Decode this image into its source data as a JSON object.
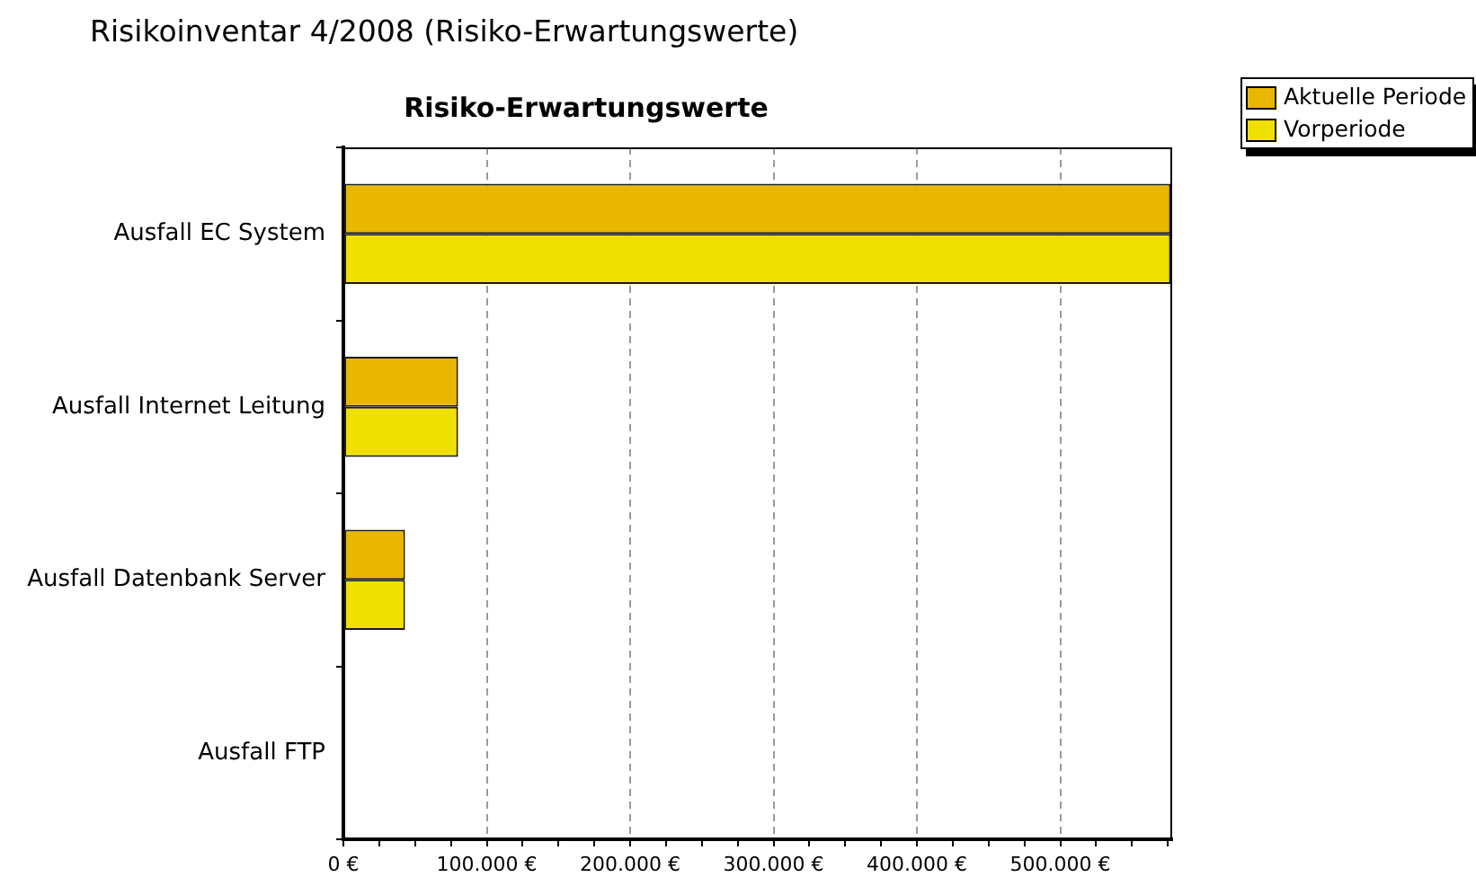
{
  "chart_data": {
    "type": "bar",
    "orientation": "horizontal",
    "title": "Risikoinventar 4/2008 (Risiko-Erwartungswerte)",
    "subtitle": "Risiko-Erwartungswerte",
    "categories": [
      "Ausfall EC System",
      "Ausfall Internet Leitung",
      "Ausfall Datenbank Server",
      "Ausfall FTP"
    ],
    "series": [
      {
        "name": "Aktuelle Periode",
        "color": "#e9b700",
        "values": [
          577000,
          80000,
          43000,
          0
        ]
      },
      {
        "name": "Vorperiode",
        "color": "#f0e000",
        "values": [
          577000,
          80000,
          43000,
          0
        ]
      }
    ],
    "xlim": [
      0,
      578000
    ],
    "xticks": [
      {
        "value": 0,
        "label": "0 €"
      },
      {
        "value": 25000,
        "label": null
      },
      {
        "value": 50000,
        "label": null
      },
      {
        "value": 75000,
        "label": null
      },
      {
        "value": 100000,
        "label": "100.000 €"
      },
      {
        "value": 125000,
        "label": null
      },
      {
        "value": 150000,
        "label": null
      },
      {
        "value": 175000,
        "label": null
      },
      {
        "value": 200000,
        "label": "200.000 €"
      },
      {
        "value": 225000,
        "label": null
      },
      {
        "value": 250000,
        "label": null
      },
      {
        "value": 275000,
        "label": null
      },
      {
        "value": 300000,
        "label": "300.000 €"
      },
      {
        "value": 325000,
        "label": null
      },
      {
        "value": 350000,
        "label": null
      },
      {
        "value": 375000,
        "label": null
      },
      {
        "value": 400000,
        "label": "400.000 €"
      },
      {
        "value": 425000,
        "label": null
      },
      {
        "value": 450000,
        "label": null
      },
      {
        "value": 475000,
        "label": null
      },
      {
        "value": 500000,
        "label": "500.000 €"
      },
      {
        "value": 525000,
        "label": null
      },
      {
        "value": 550000,
        "label": null
      },
      {
        "value": 575000,
        "label": null
      }
    ],
    "grid": "x",
    "legend": "top right"
  }
}
